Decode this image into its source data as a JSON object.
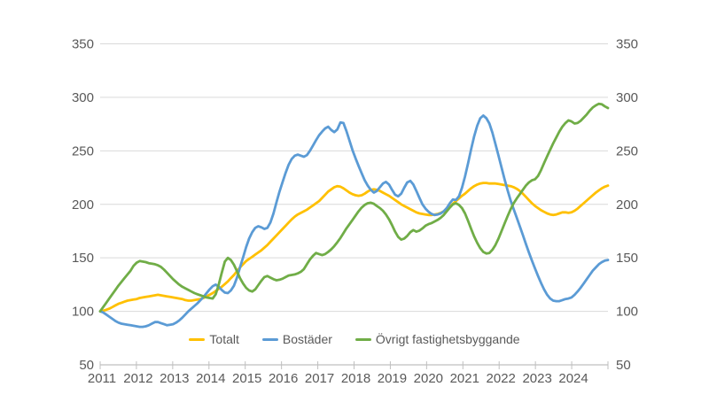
{
  "chart_data": {
    "type": "line",
    "title": "",
    "frequency": "monthly",
    "x_start": "2011-01",
    "x_end": "2024-12",
    "x_tick_labels": [
      "2011",
      "2012",
      "2013",
      "2014",
      "2015",
      "2016",
      "2017",
      "2018",
      "2019",
      "2020",
      "2021",
      "2022",
      "2023",
      "2024"
    ],
    "y_ticks": [
      50,
      100,
      150,
      200,
      250,
      300,
      350
    ],
    "ylim": [
      50,
      365
    ],
    "y_axis_sides": "both",
    "grid": "horizontal",
    "grid_color": "#D9D9D9",
    "axis_color": "#BFBFBF",
    "tick_text_color": "#595959",
    "legend_position": "bottom-center",
    "series": [
      {
        "name": "Totalt",
        "color": "#FFC000",
        "values": [
          100,
          100.5,
          101.5,
          102.5,
          104,
          105.5,
          107,
          108,
          109,
          110,
          110.5,
          111,
          111.5,
          112.5,
          113,
          113.5,
          114,
          114.5,
          115,
          115.5,
          115,
          114.5,
          114,
          113.5,
          113,
          112.5,
          112,
          111.5,
          110.5,
          110,
          110,
          110.5,
          111,
          111.5,
          112.5,
          114,
          115.5,
          117,
          119,
          121,
          123,
          125.5,
          128,
          131,
          134,
          137.5,
          141,
          144,
          147,
          149,
          151,
          153,
          155,
          157,
          159.5,
          162,
          165,
          168,
          171,
          174,
          177,
          180,
          183,
          186,
          188.5,
          190.5,
          192,
          193.5,
          195,
          197,
          199,
          201,
          203,
          206,
          209,
          212,
          214,
          216,
          217,
          216.5,
          215,
          213,
          211,
          209.5,
          208.5,
          208,
          208.5,
          210,
          212,
          213.5,
          214,
          213.5,
          212.5,
          211,
          209.5,
          208,
          206,
          204,
          202,
          200,
          198.5,
          197,
          195.5,
          194,
          192.5,
          191.5,
          191,
          190.5,
          190,
          190,
          190.5,
          191,
          192,
          193.5,
          195.5,
          198,
          200.5,
          203,
          205.5,
          208,
          210,
          212.5,
          215,
          217,
          218.5,
          219.5,
          220,
          220,
          219.5,
          219.5,
          219.5,
          219,
          218.5,
          218,
          217.5,
          217,
          216,
          214.5,
          212.5,
          210,
          207,
          204,
          201,
          198.5,
          196.5,
          194.5,
          193,
          191.5,
          190.5,
          190,
          190.5,
          191.5,
          192.5,
          192.5,
          192,
          192.5,
          194,
          196,
          198.5,
          201,
          203.5,
          206,
          208.5,
          211,
          213,
          215,
          216.5,
          217.5
        ]
      },
      {
        "name": "Bostäder",
        "color": "#5B9BD5",
        "values": [
          100,
          99,
          97,
          95,
          93,
          91,
          89.5,
          88.5,
          88,
          87.5,
          87,
          86.5,
          86,
          85.5,
          85.5,
          86,
          87,
          88.5,
          90,
          90,
          89,
          88,
          87,
          87.5,
          88,
          89.5,
          91.5,
          94,
          97,
          100,
          102.5,
          105,
          107.5,
          110.5,
          113.5,
          117,
          120.5,
          123.5,
          125,
          123,
          120,
          117.5,
          117,
          119.5,
          124,
          131.5,
          141,
          150.5,
          160,
          168,
          174,
          178,
          179.5,
          178.5,
          177,
          178,
          183,
          191.5,
          202,
          212,
          221,
          229.5,
          237,
          242.5,
          245.5,
          246.5,
          245.5,
          244.5,
          246,
          250,
          255,
          260,
          264.5,
          268,
          271,
          272.5,
          269.5,
          267.5,
          270,
          276.5,
          276,
          268.5,
          259.5,
          250.5,
          243,
          236,
          229,
          222.5,
          217.5,
          213.5,
          211,
          212.5,
          216,
          219.5,
          221,
          218.5,
          213.5,
          209,
          207.5,
          210,
          215.5,
          220.5,
          222,
          218.5,
          212.5,
          206,
          200,
          196,
          193,
          191,
          190,
          190.5,
          191.5,
          193.5,
          196.5,
          201,
          204.5,
          204,
          207.5,
          215.5,
          226,
          238.5,
          251.5,
          263.5,
          273.5,
          280.5,
          283,
          280.5,
          275.5,
          267,
          256.5,
          245.5,
          234.5,
          223.5,
          213,
          203.5,
          195.5,
          187.5,
          179.5,
          171.5,
          163,
          155,
          147.5,
          140,
          133,
          126.5,
          120.5,
          115.5,
          112,
          110,
          109.5,
          109.5,
          110.5,
          111.5,
          112,
          113,
          115.5,
          118.5,
          122,
          126,
          130,
          134,
          138,
          141,
          144,
          146,
          147.5,
          148
        ]
      },
      {
        "name": "Övrigt fastighetsbyggande",
        "color": "#70AD47",
        "values": [
          100,
          104,
          108,
          112,
          116,
          120,
          124,
          127.5,
          131,
          134.5,
          138,
          142.5,
          145.5,
          147,
          146.5,
          146,
          145,
          144.5,
          144,
          143,
          141.5,
          139,
          136,
          133,
          130,
          127.5,
          125,
          123,
          121.5,
          120,
          118.5,
          117,
          116,
          115,
          114,
          113,
          112.5,
          112,
          116,
          125,
          136,
          146.5,
          150,
          148,
          143.5,
          137.5,
          131,
          126,
          122,
          119.5,
          118.5,
          120.5,
          124.5,
          128.5,
          132,
          133,
          131.5,
          130,
          129,
          129.5,
          130.5,
          132,
          133.5,
          134,
          134.5,
          135.5,
          137,
          139.5,
          144,
          148.5,
          152,
          154.5,
          153.5,
          152.5,
          153.5,
          155.5,
          158,
          161,
          164.5,
          168.5,
          173,
          177.5,
          181.5,
          185.5,
          189.5,
          193.5,
          197,
          199.5,
          201,
          201.5,
          200.5,
          198.5,
          196.5,
          194,
          190.5,
          186,
          180.5,
          174.5,
          169.5,
          167,
          168,
          170.5,
          174,
          176,
          174.5,
          175.5,
          177.5,
          180,
          181.5,
          182.5,
          184,
          185.5,
          187.5,
          190,
          193.5,
          197,
          200,
          201,
          199.5,
          196.5,
          191.5,
          184.5,
          177,
          170,
          164,
          159,
          155.5,
          154,
          154.5,
          157.5,
          162,
          168,
          175,
          182,
          189,
          195.5,
          201,
          205.5,
          209.5,
          213.5,
          217.5,
          220.5,
          222.5,
          223.5,
          226.5,
          232,
          238.5,
          245,
          251,
          257,
          262.5,
          268,
          272.5,
          276,
          278.5,
          277.5,
          275.5,
          276,
          278,
          281,
          284,
          287.5,
          290.5,
          292.5,
          294,
          293.5,
          291.5,
          290
        ]
      }
    ]
  },
  "legend": {
    "items": [
      {
        "label": "Totalt"
      },
      {
        "label": "Bostäder"
      },
      {
        "label": "Övrigt fastighetsbyggande"
      }
    ]
  }
}
